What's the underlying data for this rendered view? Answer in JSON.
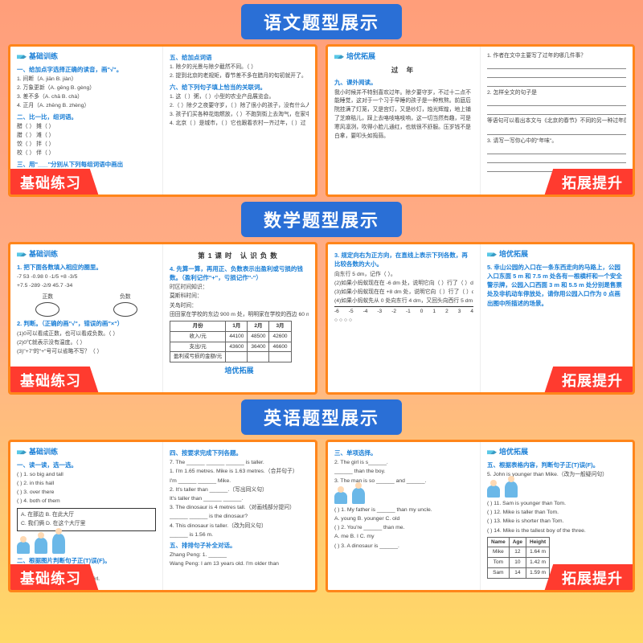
{
  "sections": [
    {
      "banner": "语文题型展示",
      "left_tag": "基础练习",
      "right_tag": "拓展提升",
      "left": {
        "col1": {
          "header": "基础训练",
          "title1": "一、给加点字选择正确的读音，画\"√\"。",
          "lines1": [
            "1. 间断（A. jiān  B. jiàn）",
            "2. 万象更新（A. gēng  B. gèng）",
            "3. 差不多（A. chā  B. chà）",
            "4. 正月（A. zhēng  B. zhèng）"
          ],
          "title2": "二、比一比，组词语。",
          "lines2": [
            "醋（      ）  摊（      ）",
            "腊（      ）  滩（      ）",
            "饺（      ）  拌（      ）",
            "校（      ）  伴（      ）"
          ],
          "title3": "三、用\"___\"分别从下列每组词语中画出"
        },
        "col2": {
          "title1": "五、给加点词语",
          "lines1": [
            "1. 除夕的光景与除夕截然不同。（   ）",
            "2. 提到北京的老规矩，春节差不多在腊月的旬初就开了。"
          ],
          "title2": "六、给下列句子填上恰当的关联词。",
          "lines2": [
            "1. 这（    ）粥，（    ）小型的农业产品展览会。",
            "2.（    ）除夕之夜要守岁，（    ）除了很小的孩子，没有什么人睡觉。",
            "3. 孩子们买各种花炮燃放，（    ）不跑到街上去淘气，在家中照样也（    ）能有声有光地玩耍。",
            "4. 北京（    ）是城市，（    ）它也跟着农村一齐过年，（    ）过"
          ]
        }
      },
      "right": {
        "col1": {
          "header": "培优拓展",
          "title1": "九、课外阅读。",
          "center": "过 年",
          "para": "我小时候并不特别喜欢过年。除夕要守岁，不过十二点不能睡觉，这对于一个习于早睡的孩子是一种煎熬。前庭后院挂满了灯笼，又是宫灯，又是纱灯，烛光辉煌，地上铺了芝麻秸儿，踩上去咯吱咯吱响，这一切当然有趣，可是寒风凛冽，吹得小脸儿通红，也就很不舒服。压岁钱不是白拿，要叩头如捣蒜。"
        },
        "col2": {
          "lines1": [
            "1. 作者在文中主要写了过年的哪几件事？"
          ],
          "blanks1": 3,
          "lines2": [
            "2. 怎样全文的句子是"
          ],
          "blanks2": 2,
          "lines3": [
            "等语句可以看出本文与《北京的春节》不同的另一种过年感受。"
          ],
          "blanks3": 1,
          "lines4": [
            "3. 请写一写你心中的\"年味\"。"
          ],
          "blanks4": 3
        }
      }
    },
    {
      "banner": "数学题型展示",
      "left_tag": "基础练习",
      "right_tag": "拓展提升",
      "left": {
        "col1": {
          "header": "基础训练",
          "title1": "1. 把下面各数填入相应的圈里。",
          "nums": "-7  53  -0.98  0  -1/5  +8  -3/5",
          "nums2": "+7.5  -289  -2/9  45.7  -34",
          "ovals": [
            "正数",
            "负数"
          ],
          "title2": "2. 判断。（正确的画\"√\"，错误的画\"×\"）",
          "lines2": [
            "(1)0可以看成正数，也可以看成负数。（  ）",
            "(2)0℃就表示没有温度。（  ）",
            "(3)\"+7\"的\"+\"号可以省略不写？（  ）"
          ]
        },
        "col2": {
          "center": "第1课时  认识负数",
          "lines0": [
            "时区时间知识：",
            "莫斯科时间：",
            "关岛时间："
          ],
          "title1": "4. 先算一算，再用正、负数表示出盈利或亏损的钱数。（盈利记作\"+\"，亏损记作\"-\"）",
          "table": {
            "headers": [
              "月份",
              "1月",
              "2月",
              "3月"
            ],
            "rows": [
              [
                "收入/元",
                "44100",
                "48500",
                "42600"
              ],
              [
                "支出/元",
                "43600",
                "36400",
                "46600"
              ],
              [
                "盈利或亏损的金额/元",
                "",
                "",
                ""
              ]
            ]
          },
          "lines2": [
            "田田家在学校的东边 900 m 处，明明家在学校的西边 60 m 处，如果田田先向西走，7 分钟后田田所处的位置怎样表示？"
          ],
          "footer": "培优拓展"
        }
      },
      "right": {
        "col1": {
          "lines0": [
            "向东行 5 dm，记作（    ）。",
            "(2)如果小蚂蚁现在在 -6 dm 处，说明它向（    ）行了（    ）dm。",
            "(3)如果小蚂蚁现在在 +8 dm 处，说明它向（    ）行了（    ）dm。",
            "(4)如果小蚂蚁先从 0 处向东行 4 dm，又回头向西行 5 dm，那这时小蚂蚁的位置是（    ）dm 处。"
          ],
          "title1": "3. 规定向右为正方向，在直线上表示下列各数，再比较各数的大小。",
          "numline": [
            "-6",
            "-5",
            "-4",
            "-3",
            "-2",
            "-1",
            "0",
            "1",
            "2",
            "3",
            "4"
          ],
          "comp": "○    ○    ○    ○"
        },
        "col2": {
          "header": "培优拓展",
          "title1": "5. 幸山公园的入口在一条东西走向的马路上，公园入口东面 5 m 和 7.5 m 处各有一根横杆和一个安全警示牌，公园入口西面 3 m 和 5.5 m 处分别是售票处及非机动车停放处，请你用公园入口作为 0 点画出图中所描述的场景。"
        }
      }
    },
    {
      "banner": "英语题型展示",
      "left_tag": "基础练习",
      "right_tag": "拓展提升",
      "left": {
        "col1": {
          "header": "基础训练",
          "title1": "一、读一读，选一选。",
          "lines1": [
            "(  ) 1. so big and tall",
            "(  ) 2. in this hall",
            "(  ) 3. over there",
            "(  ) 4. both of them"
          ],
          "box": [
            "A. 在那边    B. 在此大厅",
            "C. 我们俩    D. 在这个大厅里"
          ],
          "title2": "二、根据图片判断句子正(T)误(F)。",
          "figs": 3,
          "lines2": [
            "(  ) 1. The first is the tallest.",
            "(  ) 2. The boy is taller than the girl."
          ]
        },
        "col2": {
          "lines0": [
            "7. The ______ ______ ______ is taller."
          ],
          "title1": "四、按要求完成下列各题。",
          "lines1": [
            "1. I'm 1.65 metres. Mike is 1.63 metres.（合并句子）",
            "I'm ______ ______ Mike.",
            "2. It's taller than ______.（写出同义句）",
            "It's taller than ______ ______.",
            "3. The dinosaur is 4 metres tall.（对画线部分提问）",
            "______ ______ is the dinosaur?",
            "4. This dinosaur is taller.（改为同义句）",
            "______ is 1.56 m."
          ],
          "title2": "五、排排句子补全对话。",
          "lines2": [
            "Zhang Peng: 1. ______",
            "Wang Peng: I am 13 years old. I'm older than"
          ]
        }
      },
      "right": {
        "col1": {
          "lines0": [
            "2. The girl is s______.",
            "______ than the boy."
          ],
          "figs": 2,
          "lines1": [
            "3. The man is so ______ and ______."
          ],
          "title1": "三、单项选择。",
          "lines2": [
            "(  ) 1. My father is ______ than my uncle.",
            "   A. young  B. younger  C. old",
            "(  ) 2. You're ______ than me.",
            "   A. me  B. I  C. my",
            "(  ) 3. A dinosaur is ______."
          ]
        },
        "col2": {
          "lines0": [
            "5. John is younger than Mike.（改为一般疑问句）"
          ],
          "figs": 2,
          "header": "培优拓展",
          "title1": "五、根据表格内容，判断句子正(T)误(F)。",
          "table": {
            "headers": [
              "Name",
              "Age",
              "Height"
            ],
            "rows": [
              [
                "Mike",
                "12",
                "1.64 m"
              ],
              [
                "Tom",
                "10",
                "1.42 m"
              ],
              [
                "Sam",
                "14",
                "1.59 m"
              ]
            ]
          },
          "lines2": [
            "(  ) 11. Sam is younger than Tom.",
            "(  ) 12. Mike is taller than Tom.",
            "(  ) 13. Mike is shorter than Tom.",
            "(  ) 14. Mike is the tallest boy of the three."
          ]
        }
      }
    }
  ]
}
